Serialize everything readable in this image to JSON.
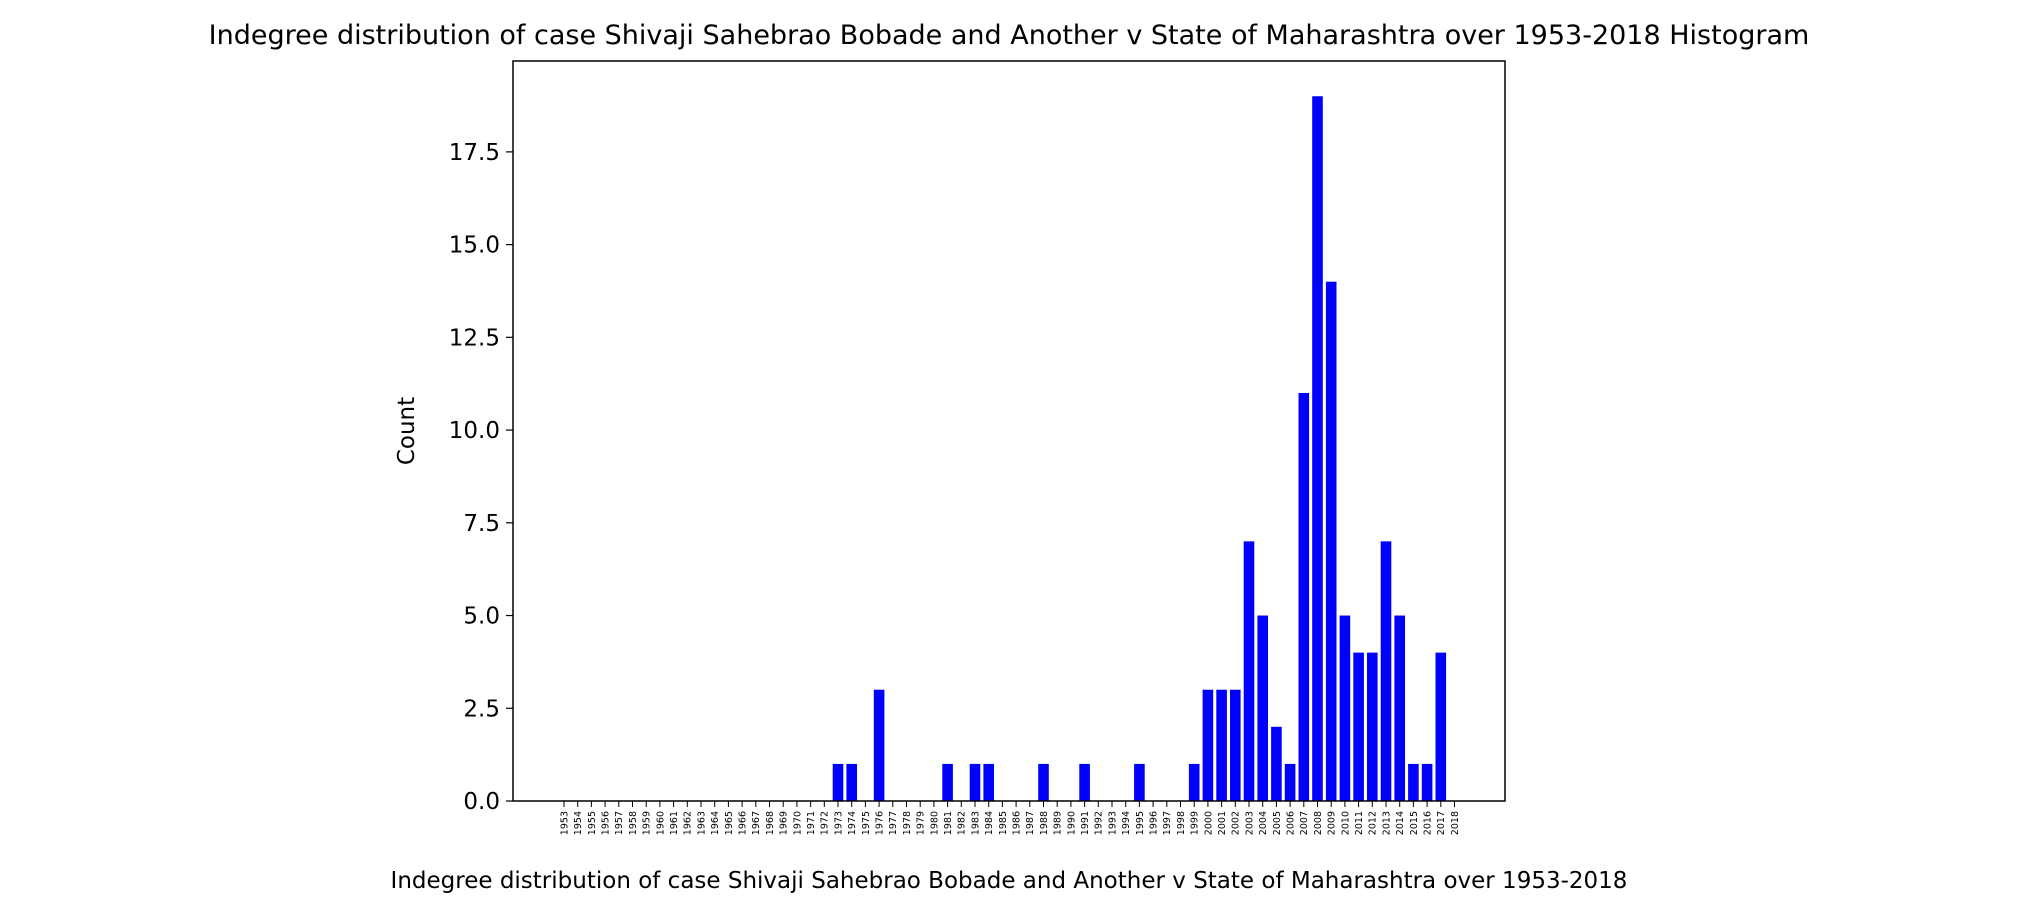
{
  "chart_data": {
    "type": "bar",
    "title": "Indegree distribution of case Shivaji Sahebrao Bobade and Another v State of Maharashtra over 1953-2018 Histogram",
    "xlabel": "Indegree distribution of case Shivaji Sahebrao Bobade and Another v State of Maharashtra over 1953-2018",
    "ylabel": "Count",
    "ylim": [
      0,
      19.95
    ],
    "yticks": [
      "0.0",
      "2.5",
      "5.0",
      "7.5",
      "10.0",
      "12.5",
      "15.0",
      "17.5"
    ],
    "bar_color": "#0000ff",
    "grid": false,
    "categories": [
      "1953",
      "1954",
      "1955",
      "1956",
      "1957",
      "1958",
      "1959",
      "1960",
      "1961",
      "1962",
      "1963",
      "1964",
      "1965",
      "1966",
      "1967",
      "1968",
      "1969",
      "1970",
      "1971",
      "1972",
      "1973",
      "1974",
      "1975",
      "1976",
      "1977",
      "1978",
      "1979",
      "1980",
      "1981",
      "1982",
      "1983",
      "1984",
      "1985",
      "1986",
      "1987",
      "1988",
      "1989",
      "1990",
      "1991",
      "1992",
      "1993",
      "1994",
      "1995",
      "1996",
      "1997",
      "1998",
      "1999",
      "2000",
      "2001",
      "2002",
      "2003",
      "2004",
      "2005",
      "2006",
      "2007",
      "2008",
      "2009",
      "2010",
      "2011",
      "2012",
      "2013",
      "2014",
      "2015",
      "2016",
      "2017",
      "2018"
    ],
    "values": [
      0,
      0,
      0,
      0,
      0,
      0,
      0,
      0,
      0,
      0,
      0,
      0,
      0,
      0,
      0,
      0,
      0,
      0,
      0,
      0,
      1,
      1,
      0,
      3,
      0,
      0,
      0,
      0,
      1,
      0,
      1,
      1,
      0,
      0,
      0,
      1,
      0,
      0,
      1,
      0,
      0,
      0,
      1,
      0,
      0,
      0,
      1,
      3,
      3,
      3,
      7,
      5,
      2,
      1,
      11,
      19,
      14,
      5,
      4,
      4,
      7,
      5,
      1,
      1,
      4,
      0
    ]
  }
}
